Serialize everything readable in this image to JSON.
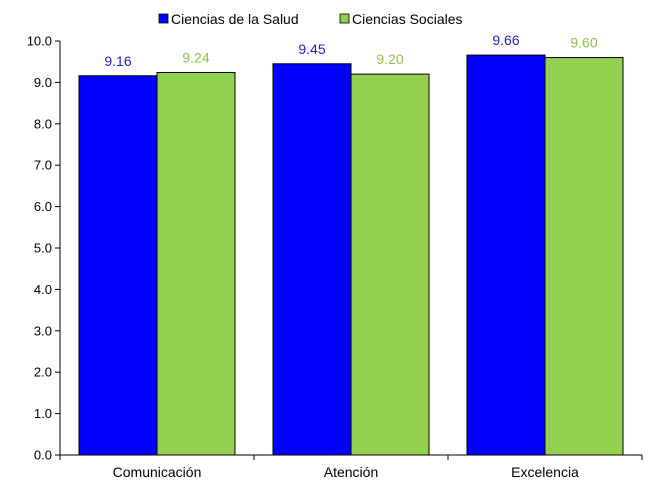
{
  "chart_data": {
    "type": "bar",
    "categories": [
      "Comunicación",
      "Atención",
      "Excelencia"
    ],
    "series": [
      {
        "name": "Ciencias de la Salud",
        "values": [
          9.16,
          9.45,
          9.66
        ],
        "labels": [
          "9.16",
          "9.45",
          "9.66"
        ],
        "color": "#0000FF",
        "label_color": "#1F1FD8"
      },
      {
        "name": "Ciencias Sociales",
        "values": [
          9.24,
          9.2,
          9.6
        ],
        "labels": [
          "9.24",
          "9.20",
          "9.60"
        ],
        "color": "#92D050",
        "label_color": "#8BC34A"
      }
    ],
    "ylim": [
      0,
      10
    ],
    "yticks": [
      "0.0",
      "1.0",
      "2.0",
      "3.0",
      "4.0",
      "5.0",
      "6.0",
      "7.0",
      "8.0",
      "9.0",
      "10.0"
    ],
    "title": "",
    "xlabel": "",
    "ylabel": "",
    "grid": false,
    "legend_position": "top"
  }
}
